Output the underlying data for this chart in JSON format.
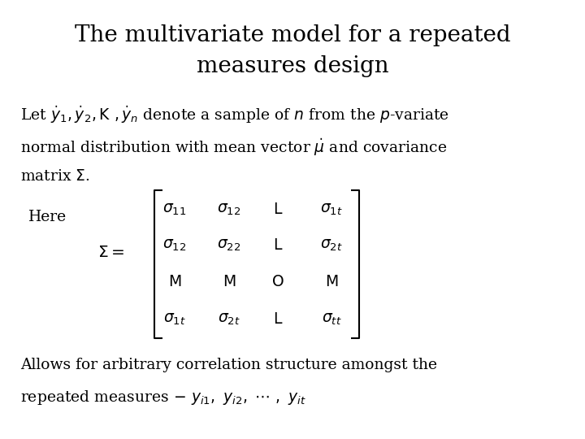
{
  "title_line1": "The multivariate model for a repeated",
  "title_line2": "measures design",
  "background_color": "#ffffff",
  "text_color": "#000000",
  "title_fontsize": 20,
  "body_fontsize": 13.5,
  "fig_width": 7.2,
  "fig_height": 5.4
}
